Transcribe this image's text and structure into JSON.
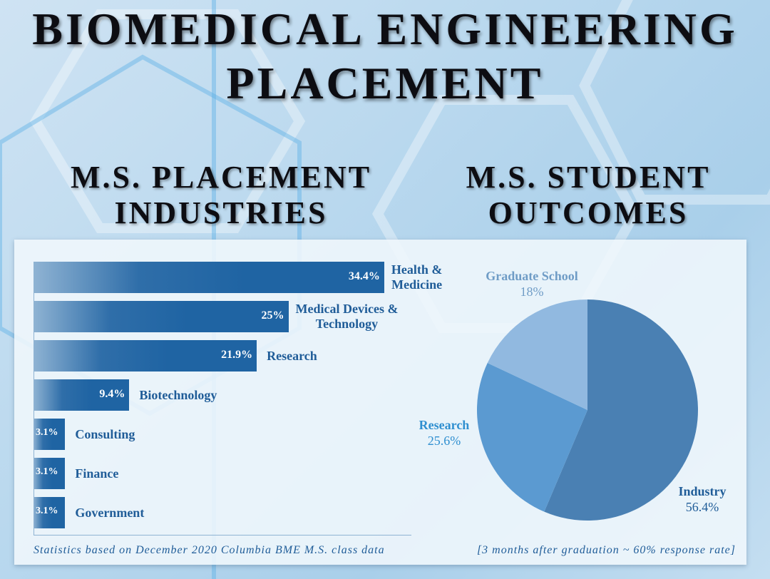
{
  "title_line1": "BIOMEDICAL ENGINEERING",
  "title_line2": "PLACEMENT",
  "left_heading": {
    "line1": "M.S. PLACEMENT",
    "line2": "INDUSTRIES"
  },
  "right_heading": {
    "line1": "M.S. STUDENT",
    "line2": "OUTCOMES"
  },
  "chart_data": [
    {
      "type": "bar",
      "orientation": "horizontal",
      "categories": [
        "Health & Medicine",
        "Medical Devices & Technology",
        "Research",
        "Biotechnology",
        "Consulting",
        "Finance",
        "Government"
      ],
      "label_lines": [
        [
          "Health &",
          "Medicine"
        ],
        [
          "Medical Devices &",
          "Technology"
        ],
        [
          "Research"
        ],
        [
          "Biotechnology"
        ],
        [
          "Consulting"
        ],
        [
          "Finance"
        ],
        [
          "Government"
        ]
      ],
      "values": [
        34.4,
        25,
        21.9,
        9.4,
        3.1,
        3.1,
        3.1
      ],
      "value_labels": [
        "34.4%",
        "25%",
        "21.9%",
        "9.4%",
        "3.1%",
        "3.1%",
        "3.1%"
      ],
      "unit": "%",
      "color": "#1f64a3",
      "footnote": "Statistics based on December 2020 Columbia BME M.S. class data"
    },
    {
      "type": "pie",
      "slices": [
        {
          "label": "Industry",
          "value": 56.4,
          "value_label": "56.4%",
          "color": "#4a80b3",
          "text_color": "#1f5c98"
        },
        {
          "label": "Research",
          "value": 25.6,
          "value_label": "25.6%",
          "color": "#5b9ad1",
          "text_color": "#2f8fd0"
        },
        {
          "label": "Graduate School",
          "value": 18,
          "value_label": "18%",
          "color": "#91b9e0",
          "text_color": "#6f9cc6"
        }
      ],
      "start": "top",
      "direction": "clockwise",
      "footnote": "[3 months after graduation ~ 60% response rate]"
    }
  ]
}
